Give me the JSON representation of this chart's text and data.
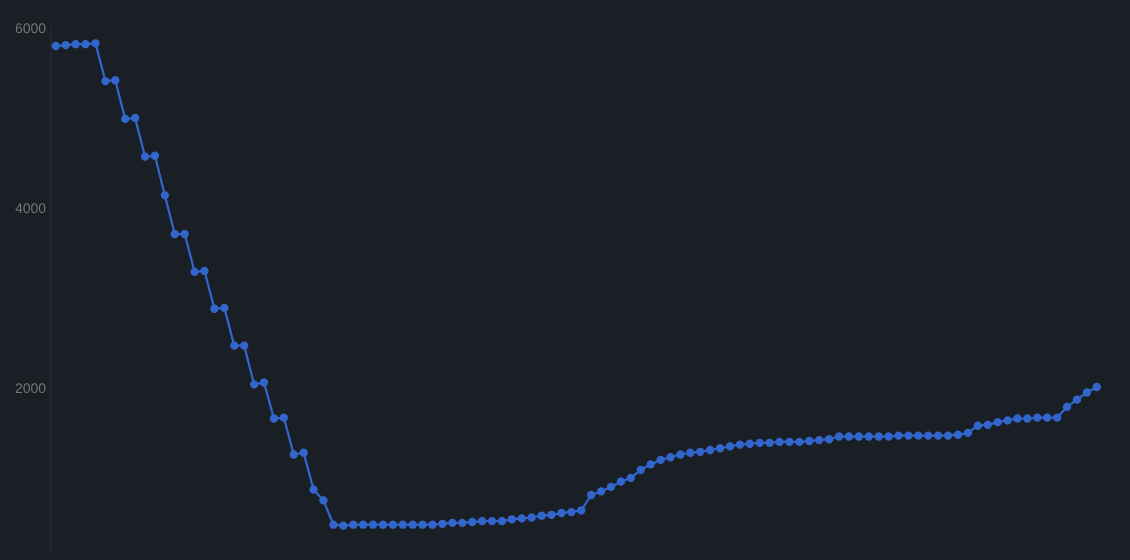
{
  "chart_data": {
    "type": "line",
    "categories": [
      null,
      null,
      null,
      null,
      null,
      null,
      null,
      null,
      null,
      null,
      null,
      null,
      null,
      null,
      null,
      null,
      null,
      null,
      null,
      null,
      null,
      null,
      null,
      null,
      null,
      null,
      null,
      null,
      null,
      null,
      null,
      null,
      null,
      null,
      null,
      null,
      null,
      null,
      null,
      null,
      null,
      null,
      null,
      null,
      null,
      null,
      null,
      null,
      null,
      null,
      null,
      null,
      null,
      null,
      null,
      null,
      null,
      null,
      null,
      null,
      null,
      null,
      null,
      null,
      null,
      null,
      null,
      null,
      null,
      null,
      null,
      null,
      null,
      null,
      null,
      null,
      null,
      null,
      null,
      null,
      null,
      null,
      null,
      null,
      null,
      null,
      null,
      null,
      null,
      null,
      null,
      null,
      null,
      null,
      null,
      null,
      null,
      null,
      null,
      null,
      null,
      null,
      null,
      null,
      null,
      null
    ],
    "series": [
      {
        "color": "#3366cc",
        "values": [
          5800,
          5810,
          5820,
          5820,
          5830,
          5410,
          5420,
          4990,
          5000,
          4570,
          4580,
          4140,
          3710,
          3710,
          3290,
          3300,
          2880,
          2890,
          2470,
          2470,
          2040,
          2060,
          1660,
          1670,
          1260,
          1280,
          870,
          750,
          480,
          470,
          480,
          480,
          480,
          480,
          480,
          480,
          480,
          480,
          480,
          490,
          500,
          500,
          510,
          520,
          520,
          520,
          540,
          550,
          560,
          580,
          590,
          610,
          620,
          640,
          810,
          850,
          900,
          960,
          1000,
          1090,
          1150,
          1200,
          1230,
          1260,
          1280,
          1290,
          1310,
          1330,
          1350,
          1370,
          1380,
          1390,
          1390,
          1400,
          1400,
          1400,
          1410,
          1420,
          1430,
          1460,
          1460,
          1460,
          1460,
          1460,
          1460,
          1470,
          1470,
          1470,
          1470,
          1470,
          1470,
          1480,
          1500,
          1580,
          1590,
          1620,
          1640,
          1660,
          1660,
          1670,
          1670,
          1670,
          1790,
          1870,
          1950,
          2010
        ]
      }
    ],
    "ylim": [
      150,
      6000
    ],
    "yticks": [
      2000,
      4000,
      6000
    ],
    "tick_labels": "y",
    "marker": "circle",
    "line_style": "solid",
    "grid": false
  }
}
